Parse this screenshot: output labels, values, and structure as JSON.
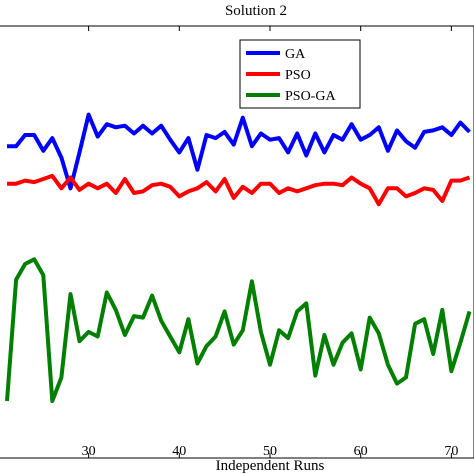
{
  "chart_data": {
    "type": "line",
    "title": "Solution 2",
    "xlabel": "Independent Runs",
    "ylabel": "",
    "xlim": [
      21,
      72
    ],
    "ylim": [
      0,
      100
    ],
    "x_ticks": [
      30,
      40,
      50,
      60,
      70
    ],
    "grid": false,
    "legend": "top-right",
    "x": [
      21,
      22,
      23,
      24,
      25,
      26,
      27,
      28,
      29,
      30,
      31,
      32,
      33,
      34,
      35,
      36,
      37,
      38,
      39,
      40,
      41,
      42,
      43,
      44,
      45,
      46,
      47,
      48,
      49,
      50,
      51,
      52,
      53,
      54,
      55,
      56,
      57,
      58,
      59,
      60,
      61,
      62,
      63,
      64,
      65,
      66,
      67,
      68,
      69,
      70,
      71,
      72
    ],
    "series": [
      {
        "name": "GA",
        "color": "#0000ff",
        "values": [
          82.2,
          82.2,
          85.8,
          85.8,
          80.7,
          84.8,
          78.5,
          68.6,
          80.2,
          92.4,
          85.3,
          89.3,
          88.3,
          88.8,
          86.3,
          88.8,
          86.3,
          88.8,
          84.3,
          80.2,
          84.8,
          74.6,
          85.8,
          84.8,
          86.8,
          82.7,
          91.4,
          82.2,
          86.3,
          84.3,
          84.8,
          80.2,
          86.3,
          79.2,
          86.3,
          80.2,
          85.8,
          84.3,
          89.3,
          84.3,
          85.8,
          88.3,
          80.7,
          87.3,
          83.8,
          81.7,
          86.8,
          87.3,
          88.3,
          85.8,
          89.8,
          86.8
        ]
      },
      {
        "name": "PSO",
        "color": "#ff0000",
        "values": [
          70.1,
          70.1,
          71.1,
          70.6,
          71.6,
          72.6,
          68.6,
          72.1,
          68.1,
          70.1,
          68.6,
          70.1,
          67.1,
          71.6,
          67.1,
          67.6,
          69.6,
          70.1,
          69.1,
          66.0,
          67.6,
          68.6,
          70.6,
          67.6,
          71.6,
          65.5,
          69.1,
          67.1,
          70.1,
          70.1,
          67.1,
          68.6,
          67.6,
          68.6,
          69.6,
          70.1,
          70.1,
          69.6,
          72.1,
          70.1,
          68.6,
          63.5,
          68.6,
          68.6,
          66.0,
          67.1,
          68.6,
          68.1,
          64.5,
          71.1,
          71.1,
          72.1
        ]
      },
      {
        "name": "PSO-GA",
        "color": "#007f00",
        "values": [
          0,
          39.1,
          44.2,
          45.7,
          40.6,
          0,
          7.6,
          34.5,
          19.3,
          22.3,
          20.8,
          35.0,
          29.4,
          21.3,
          27.4,
          26.9,
          34.0,
          25.9,
          20.8,
          15.7,
          26.4,
          12.1,
          17.7,
          20.8,
          28.9,
          18.2,
          22.8,
          38.6,
          22.3,
          11.7,
          22.8,
          20.3,
          28.9,
          31.5,
          8.2,
          21.3,
          11.7,
          18.8,
          21.8,
          10.2,
          26.9,
          21.8,
          11.7,
          5.6,
          7.6,
          24.9,
          26.4,
          15.2,
          29.4,
          9.6,
          18.8,
          28.9
        ]
      }
    ]
  }
}
